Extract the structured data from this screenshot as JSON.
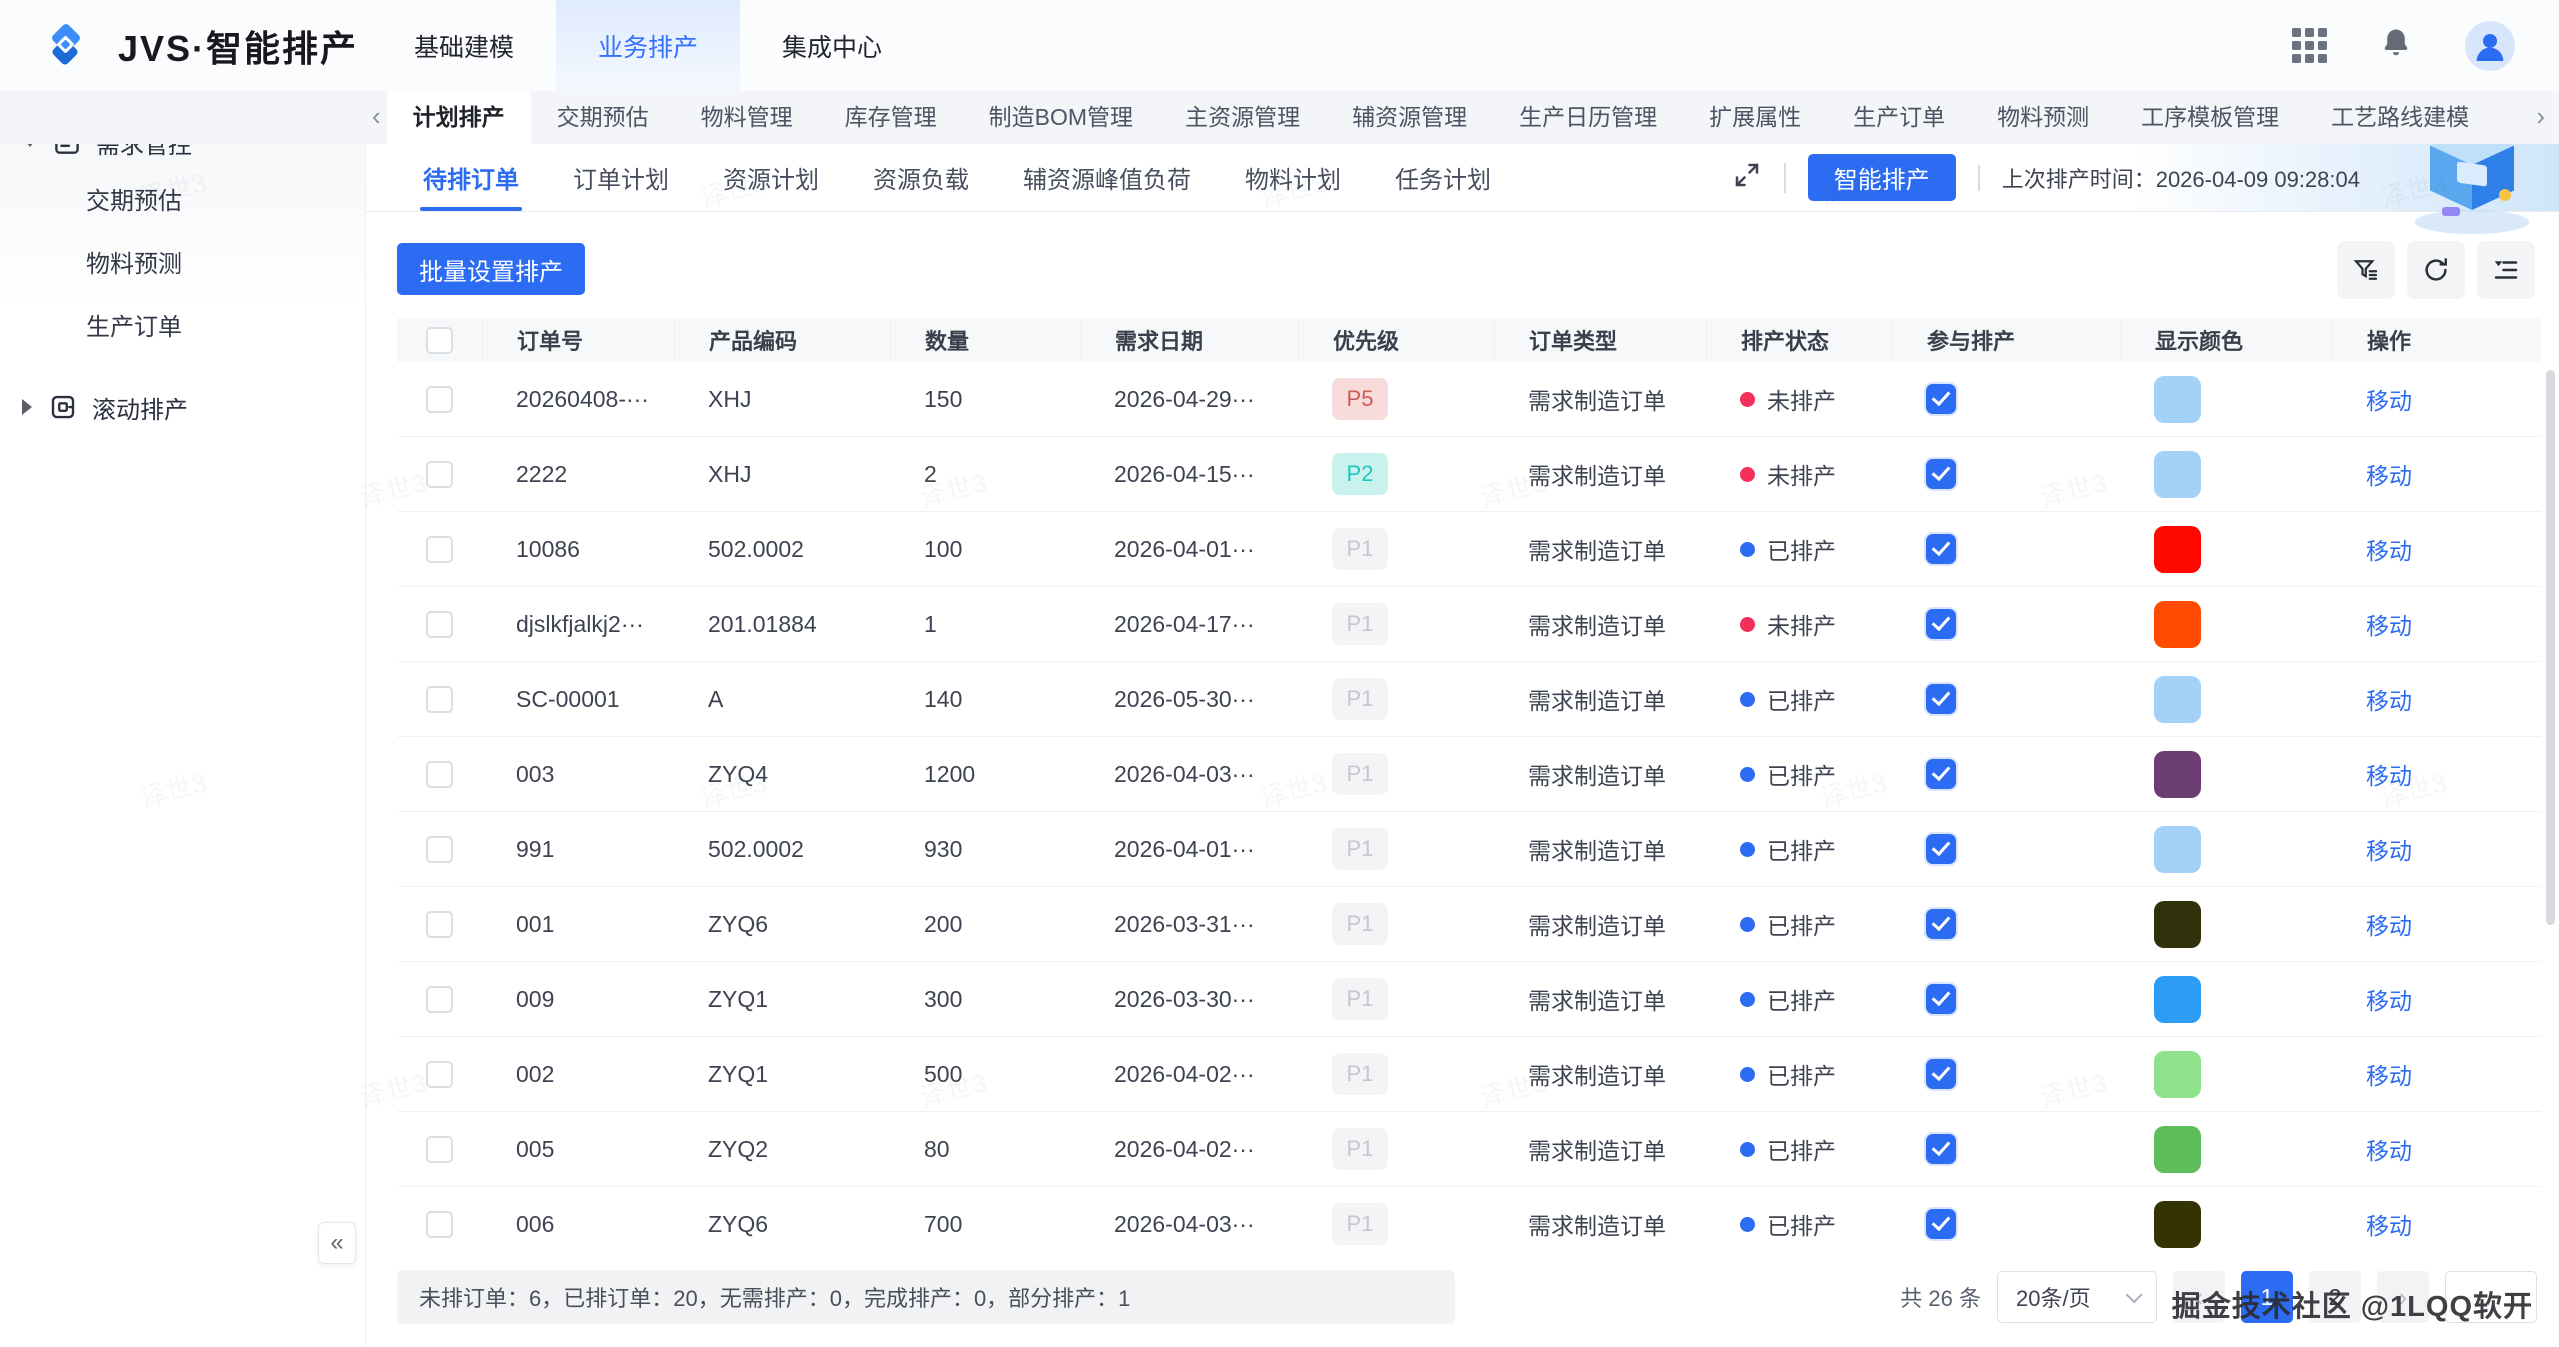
{
  "colors": {
    "primary": "#2c6cf2",
    "status_unscheduled": "#f4305a",
    "status_scheduled": "#2c6cf2"
  },
  "topbar": {
    "logo_text": "JVS·智能排产",
    "nav": [
      {
        "key": "basic-modeling",
        "label": "基础建模",
        "active": false
      },
      {
        "key": "business-scheduling",
        "label": "业务排产",
        "active": true
      },
      {
        "key": "integration-center",
        "label": "集成中心",
        "active": false
      }
    ]
  },
  "subnav": {
    "items": [
      {
        "key": "plan-schedule",
        "label": "计划排产",
        "active": true
      },
      {
        "key": "delivery-estimate",
        "label": "交期预估",
        "active": false
      },
      {
        "key": "material-mgmt",
        "label": "物料管理",
        "active": false
      },
      {
        "key": "inventory-mgmt",
        "label": "库存管理",
        "active": false
      },
      {
        "key": "bom-mgmt",
        "label": "制造BOM管理",
        "active": false
      },
      {
        "key": "main-resource-mgmt",
        "label": "主资源管理",
        "active": false
      },
      {
        "key": "aux-resource-mgmt",
        "label": "辅资源管理",
        "active": false
      },
      {
        "key": "production-calendar-mgmt",
        "label": "生产日历管理",
        "active": false
      },
      {
        "key": "extended-attrs",
        "label": "扩展属性",
        "active": false
      },
      {
        "key": "production-order",
        "label": "生产订单",
        "active": false
      },
      {
        "key": "material-forecast",
        "label": "物料预测",
        "active": false
      },
      {
        "key": "process-template-mgmt",
        "label": "工序模板管理",
        "active": false
      },
      {
        "key": "process-route-modeling",
        "label": "工艺路线建模",
        "active": false
      }
    ],
    "left_arrow": "‹",
    "right_arrow": "›"
  },
  "sidebar": {
    "groups": [
      {
        "key": "demand-control",
        "label": "需求管控",
        "icon": "calendar",
        "expanded": true,
        "children": [
          {
            "key": "delivery-estimate",
            "label": "交期预估"
          },
          {
            "key": "material-forecast",
            "label": "物料预测"
          },
          {
            "key": "production-order",
            "label": "生产订单"
          }
        ]
      },
      {
        "key": "rolling-schedule",
        "label": "滚动排产",
        "icon": "rolling",
        "expanded": false,
        "children": []
      }
    ],
    "collapse_glyph": "«"
  },
  "view_tabs": [
    {
      "key": "pending-orders",
      "label": "待排订单",
      "active": true
    },
    {
      "key": "order-plan",
      "label": "订单计划",
      "active": false
    },
    {
      "key": "resource-plan",
      "label": "资源计划",
      "active": false
    },
    {
      "key": "resource-load",
      "label": "资源负载",
      "active": false
    },
    {
      "key": "aux-resource-peak-load",
      "label": "辅资源峰值负荷",
      "active": false
    },
    {
      "key": "material-plan",
      "label": "物料计划",
      "active": false
    },
    {
      "key": "task-plan",
      "label": "任务计划",
      "active": false
    }
  ],
  "schedule": {
    "smart_button": "智能排产",
    "last_time": "上次排产时间：2026-04-09 09:28:04"
  },
  "toolbar": {
    "batch_button": "批量设置排产"
  },
  "table": {
    "headers": [
      "订单号",
      "产品编码",
      "数量",
      "需求日期",
      "优先级",
      "订单类型",
      "排产状态",
      "参与排产",
      "显示颜色",
      "操作"
    ],
    "rows": [
      {
        "order_no": "20260408-···",
        "product": "XHJ",
        "qty": "150",
        "date": "2026-04-29···",
        "priority": "P5",
        "priority_class": "p-red",
        "type": "需求制造订单",
        "status": "未排产",
        "scheduled": false,
        "display_color": "#a3d1f8",
        "action": "移动"
      },
      {
        "order_no": "2222",
        "product": "XHJ",
        "qty": "2",
        "date": "2026-04-15···",
        "priority": "P2",
        "priority_class": "p-cyan",
        "type": "需求制造订单",
        "status": "未排产",
        "scheduled": false,
        "display_color": "#a3d1f8",
        "action": "移动"
      },
      {
        "order_no": "10086",
        "product": "502.0002",
        "qty": "100",
        "date": "2026-04-01···",
        "priority": "P1",
        "priority_class": "p-gray",
        "type": "需求制造订单",
        "status": "已排产",
        "scheduled": true,
        "display_color": "#fe0800",
        "action": "移动"
      },
      {
        "order_no": "djslkfjalkj2···",
        "product": "201.01884",
        "qty": "1",
        "date": "2026-04-17···",
        "priority": "P1",
        "priority_class": "p-gray",
        "type": "需求制造订单",
        "status": "未排产",
        "scheduled": false,
        "display_color": "#ff4b00",
        "action": "移动"
      },
      {
        "order_no": "SC-00001",
        "product": "A",
        "qty": "140",
        "date": "2026-05-30···",
        "priority": "P1",
        "priority_class": "p-gray",
        "type": "需求制造订单",
        "status": "已排产",
        "scheduled": true,
        "display_color": "#a3d1f8",
        "action": "移动"
      },
      {
        "order_no": "003",
        "product": "ZYQ4",
        "qty": "1200",
        "date": "2026-04-03···",
        "priority": "P1",
        "priority_class": "p-gray",
        "type": "需求制造订单",
        "status": "已排产",
        "scheduled": true,
        "display_color": "#6c3d72",
        "action": "移动"
      },
      {
        "order_no": "991",
        "product": "502.0002",
        "qty": "930",
        "date": "2026-04-01···",
        "priority": "P1",
        "priority_class": "p-gray",
        "type": "需求制造订单",
        "status": "已排产",
        "scheduled": true,
        "display_color": "#a3d1f8",
        "action": "移动"
      },
      {
        "order_no": "001",
        "product": "ZYQ6",
        "qty": "200",
        "date": "2026-03-31···",
        "priority": "P1",
        "priority_class": "p-gray",
        "type": "需求制造订单",
        "status": "已排产",
        "scheduled": true,
        "display_color": "#30300a",
        "action": "移动"
      },
      {
        "order_no": "009",
        "product": "ZYQ1",
        "qty": "300",
        "date": "2026-03-30···",
        "priority": "P1",
        "priority_class": "p-gray",
        "type": "需求制造订单",
        "status": "已排产",
        "scheduled": true,
        "display_color": "#2d9cf5",
        "action": "移动"
      },
      {
        "order_no": "002",
        "product": "ZYQ1",
        "qty": "500",
        "date": "2026-04-02···",
        "priority": "P1",
        "priority_class": "p-gray",
        "type": "需求制造订单",
        "status": "已排产",
        "scheduled": true,
        "display_color": "#8fe28c",
        "action": "移动"
      },
      {
        "order_no": "005",
        "product": "ZYQ2",
        "qty": "80",
        "date": "2026-04-02···",
        "priority": "P1",
        "priority_class": "p-gray",
        "type": "需求制造订单",
        "status": "已排产",
        "scheduled": true,
        "display_color": "#5ebe5c",
        "action": "移动"
      },
      {
        "order_no": "006",
        "product": "ZYQ6",
        "qty": "700",
        "date": "2026-04-03···",
        "priority": "P1",
        "priority_class": "p-gray",
        "type": "需求制造订单",
        "status": "已排产",
        "scheduled": true,
        "display_color": "#333304",
        "action": "移动"
      }
    ]
  },
  "footer": {
    "stats": "未排订单：6，已排订单：20，无需排产：0，完成排产：0，部分排产：1",
    "total": "共 26 条",
    "page_size": "20条/页",
    "pages": [
      {
        "label": "1",
        "active": true
      },
      {
        "label": "2",
        "active": false
      }
    ],
    "prev_glyph": "‹",
    "next_glyph": "›",
    "watermark": "掘金技术社区 @1LQQ软开",
    "tile_watermark": "泽世3"
  }
}
